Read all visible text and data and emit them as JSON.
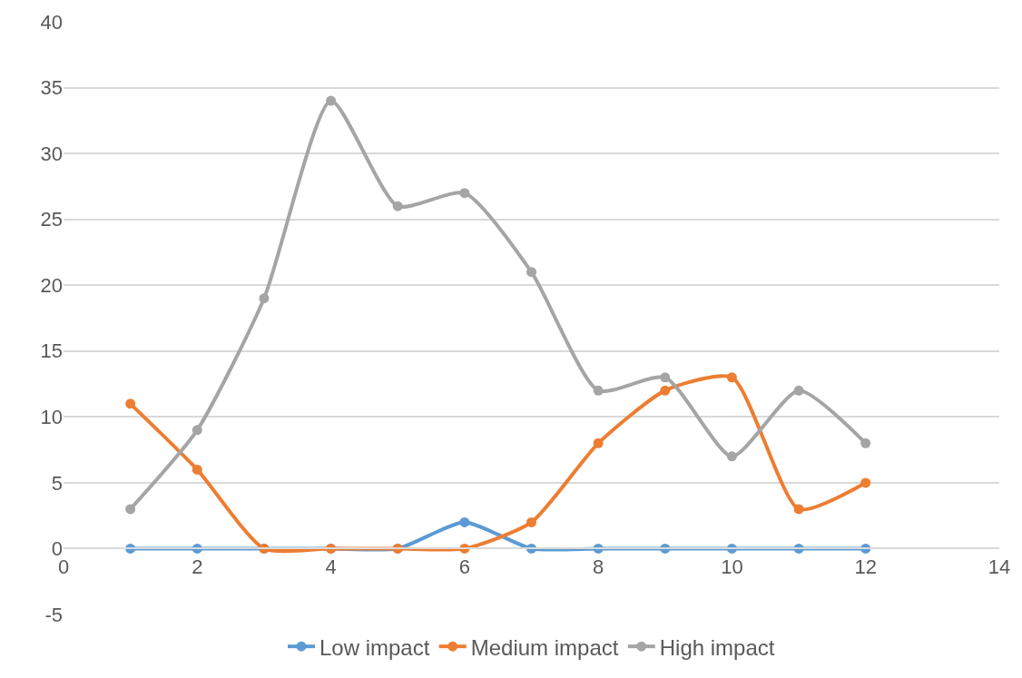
{
  "chart_data": {
    "type": "line",
    "x": [
      1,
      2,
      3,
      4,
      5,
      6,
      7,
      8,
      9,
      10,
      11,
      12
    ],
    "series": [
      {
        "name": "Low impact",
        "color": "#5b9bd5",
        "values": [
          0,
          0,
          0,
          0,
          0,
          2,
          0,
          0,
          0,
          0,
          0,
          0
        ]
      },
      {
        "name": "Medium impact",
        "color": "#ed7d31",
        "values": [
          11,
          6,
          0,
          0,
          0,
          0,
          2,
          8,
          12,
          13,
          3,
          5
        ]
      },
      {
        "name": "High impact",
        "color": "#a5a5a5",
        "values": [
          3,
          9,
          19,
          34,
          26,
          27,
          21,
          12,
          13,
          7,
          12,
          8
        ]
      }
    ],
    "xlim": [
      0,
      14
    ],
    "xticks": [
      0,
      2,
      4,
      6,
      8,
      10,
      12,
      14
    ],
    "ylim": [
      -5,
      40
    ],
    "yticks": [
      -5,
      0,
      5,
      10,
      15,
      20,
      25,
      30,
      35,
      40
    ],
    "grid": "y",
    "legend": "bottom",
    "marker": "circle",
    "line_style": "solid"
  }
}
